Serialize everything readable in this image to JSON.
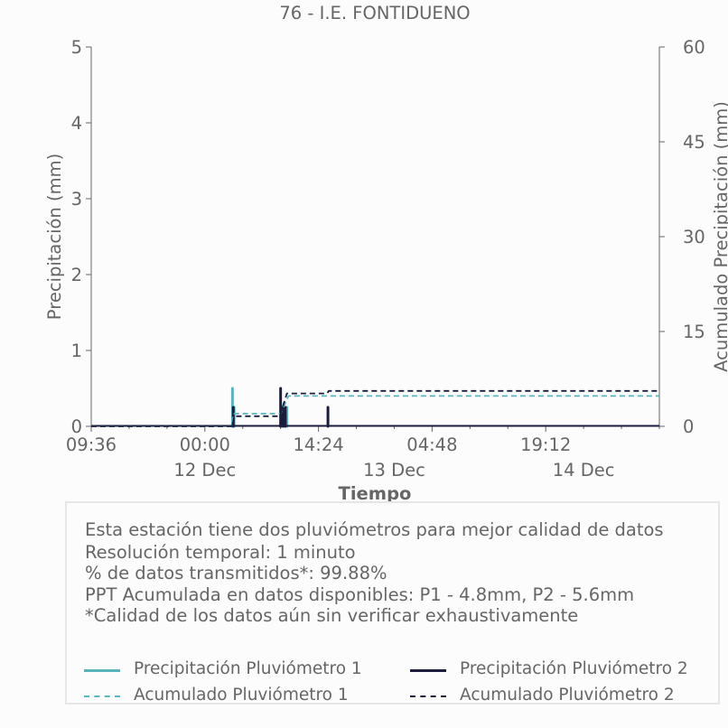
{
  "chart_data": {
    "type": "line",
    "title": "76 - I.E. FONTIDUENO",
    "xlabel": "Tiempo",
    "ylabel": "Precipitación (mm)",
    "y2label": "Acumulado Precipitación (mm)",
    "ylim": [
      0,
      5
    ],
    "y2lim": [
      0,
      60
    ],
    "yticks": [
      "0",
      "1",
      "2",
      "3",
      "4",
      "5"
    ],
    "y2ticks": [
      "0",
      "15",
      "30",
      "45",
      "60"
    ],
    "xlim_hours": [
      0,
      72
    ],
    "xtick_labels": [
      "09:36",
      "00:00",
      "14:24",
      "04:48",
      "19:12"
    ],
    "xtick_hours": [
      0,
      14.4,
      28.8,
      43.2,
      57.6
    ],
    "day_labels": [
      "12 Dec",
      "13 Dec",
      "14 Dec"
    ],
    "day_label_hours": [
      14.4,
      38.4,
      62.4
    ],
    "x_start": "11 Dec 09:36",
    "grid": false,
    "series": [
      {
        "name": "Precipitación Pluviómetro 1",
        "axis": "left",
        "style": "solid",
        "color": "#5ab4bc",
        "points": [
          [
            17.9,
            0.5
          ],
          [
            18.1,
            0.25
          ],
          [
            24.1,
            0.25
          ],
          [
            24.5,
            0.25
          ],
          [
            24.8,
            0.25
          ]
        ]
      },
      {
        "name": "Precipitación Pluviómetro 2",
        "axis": "left",
        "style": "solid",
        "color": "#1c1c3c",
        "points": [
          [
            18.0,
            0.25
          ],
          [
            24.0,
            0.5
          ],
          [
            24.3,
            0.25
          ],
          [
            24.6,
            0.25
          ],
          [
            30.0,
            0.25
          ]
        ]
      },
      {
        "name": "Acumulado Pluviómetro 1",
        "axis": "right",
        "style": "dashed",
        "color": "#5ab4bc",
        "x": [
          0,
          17.8,
          18.0,
          24.0,
          25.0,
          72
        ],
        "y": [
          0,
          0,
          2.0,
          2.0,
          4.8,
          4.8
        ]
      },
      {
        "name": "Acumulado Pluviómetro 2",
        "axis": "right",
        "style": "dashed",
        "color": "#1c1c3c",
        "x": [
          0,
          17.9,
          18.1,
          23.9,
          24.8,
          29.9,
          30.1,
          72
        ],
        "y": [
          0,
          0,
          1.6,
          1.6,
          5.2,
          5.2,
          5.6,
          5.6
        ]
      }
    ]
  },
  "info": {
    "line1": "Esta estación tiene dos pluviómetros para mejor calidad de datos",
    "line2": "Resolución temporal: 1 minuto",
    "line3": "% de datos transmitidos*: 99.88%",
    "line4": "PPT Acumulada en datos disponibles: P1 - 4.8mm, P2 - 5.6mm",
    "line5": "*Calidad de los datos aún sin verificar exhaustivamente"
  },
  "legend": {
    "p1": "Precipitación Pluviómetro 1",
    "p2": "Precipitación Pluviómetro 2",
    "a1": "Acumulado Pluviómetro 1",
    "a2": "Acumulado Pluviómetro 2"
  },
  "colors": {
    "p1": "#5ab4bc",
    "p2": "#1c1c3c",
    "axis": "#666666"
  }
}
